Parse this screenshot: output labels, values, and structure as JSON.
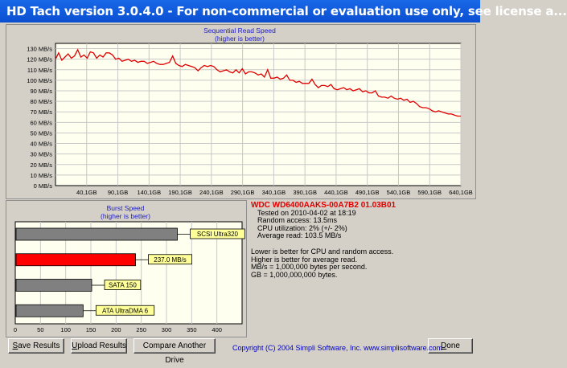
{
  "window": {
    "title": "HD Tach version 3.0.4.0  - For non-commercial or evaluation use only, see license a..."
  },
  "colors": {
    "title_bar": "#0b4fd1",
    "chart_line": "#e00000",
    "label_blue": "#1c1cc8",
    "drive_red": "#e00000",
    "bar_gray": "#808080",
    "bar_red": "#ff0000",
    "bubble": "#ffff99",
    "plot_bg": "#fffff0"
  },
  "chart_data": [
    {
      "type": "line",
      "title": "Sequential Read Speed",
      "subtitle": "(higher is better)",
      "y_ticks": [
        "0 MB/s",
        "10 MB/s",
        "20 MB/s",
        "30 MB/s",
        "40 MB/s",
        "50 MB/s",
        "60 MB/s",
        "70 MB/s",
        "80 MB/s",
        "90 MB/s",
        "100 MB/s",
        "110 MB/s",
        "120 MB/s",
        "130 MB/s"
      ],
      "x_ticks": [
        "40,1GB",
        "90,1GB",
        "140,1GB",
        "190,1GB",
        "240,1GB",
        "290,1GB",
        "340,1GB",
        "390,1GB",
        "440,1GB",
        "490,1GB",
        "540,1GB",
        "590,1GB",
        "640,1GB"
      ],
      "ylim": [
        0,
        135
      ],
      "xlim": [
        0,
        640.1
      ],
      "series": [
        {
          "x": [
            0,
            5,
            10,
            15,
            20,
            25,
            30,
            35,
            40,
            45,
            50,
            55,
            60,
            65,
            70,
            75,
            80,
            85,
            90,
            95,
            100,
            105,
            110,
            115,
            120,
            125,
            130,
            135,
            140,
            145,
            150,
            155,
            160,
            165,
            170,
            175,
            180,
            185,
            190,
            195,
            200,
            205,
            210,
            215,
            220,
            225,
            230,
            235,
            240,
            245,
            250,
            255,
            260,
            265,
            270,
            275,
            280,
            285,
            290,
            295,
            300,
            305,
            310,
            315,
            320,
            325,
            330,
            335,
            340,
            345,
            350,
            355,
            360,
            365,
            370,
            375,
            380,
            385,
            390,
            395,
            400,
            405,
            410,
            415,
            420,
            425,
            430,
            435,
            440,
            445,
            450,
            455,
            460,
            465,
            470,
            475,
            480,
            485,
            490,
            495,
            500,
            505,
            510,
            515,
            520,
            525,
            530,
            535,
            540,
            545,
            550,
            555,
            560,
            565,
            570,
            575,
            580,
            585,
            590,
            595,
            600,
            605,
            610,
            615,
            620,
            625,
            630,
            635,
            640
          ],
          "y": [
            120,
            126,
            119,
            122,
            125,
            121,
            123,
            129,
            122,
            124,
            121,
            127,
            126,
            121,
            124,
            122,
            126,
            126,
            124,
            120,
            121,
            118,
            119,
            120,
            118,
            119,
            117,
            118,
            118,
            116,
            117,
            118,
            116,
            115,
            115,
            116,
            117,
            123,
            116,
            114,
            113,
            115,
            114,
            113,
            112,
            109,
            112,
            114,
            113,
            114,
            113,
            110,
            108,
            109,
            110,
            108,
            107,
            110,
            107,
            111,
            106,
            108,
            108,
            107,
            105,
            106,
            103,
            110,
            102,
            102,
            103,
            101,
            102,
            105,
            100,
            100,
            98,
            99,
            97,
            97,
            97,
            101,
            96,
            93,
            95,
            95,
            94,
            96,
            92,
            91,
            92,
            93,
            91,
            92,
            90,
            91,
            92,
            89,
            90,
            88,
            88,
            90,
            85,
            84,
            84,
            83,
            85,
            83,
            82,
            83,
            81,
            82,
            79,
            80,
            78,
            75,
            74,
            74,
            73,
            71,
            70,
            71,
            70,
            69,
            68,
            68,
            67,
            66,
            66
          ]
        }
      ]
    },
    {
      "type": "bar",
      "title": "Burst Speed",
      "subtitle": "(higher is better)",
      "orientation": "horizontal",
      "categories": [
        "SCSI Ultra320",
        "237.0 MB/s",
        "SATA 150",
        "ATA UltraDMA 6"
      ],
      "values": [
        320,
        237,
        150,
        133
      ],
      "highlight_index": 1,
      "x_ticks": [
        "0",
        "50",
        "100",
        "150",
        "200",
        "250",
        "300",
        "350",
        "400"
      ],
      "xlim": [
        0,
        450
      ]
    }
  ],
  "info": {
    "drive": "WDC WD6400AAKS-00A7B2 01.03B01",
    "tested_on": "Tested on 2010-04-02 at 18:19",
    "random_access": "Random access: 13.5ms",
    "cpu": "CPU utilization: 2% (+/- 2%)",
    "avg_read": "Average read: 103.5 MB/s",
    "note1": "Lower is better for CPU and random access.",
    "note2": "Higher is better for average read.",
    "note3": "MB/s = 1,000,000 bytes per second.",
    "note4": "GB = 1,000,000,000 bytes."
  },
  "buttons": {
    "save_first": "S",
    "save_rest": "ave Results",
    "upload_first": "U",
    "upload_rest": "pload Results",
    "compare": "Compare Another Drive",
    "done_first": "D",
    "done_rest": "one"
  },
  "copyright": "Copyright (C) 2004 Simpli Software, Inc. www.simplisoftware.com"
}
